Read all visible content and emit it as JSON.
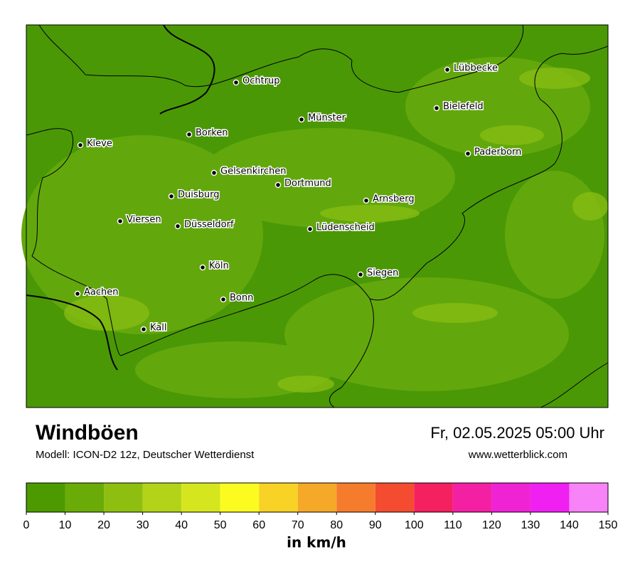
{
  "title": "Windböen",
  "model": "Modell: ICON-D2 12z, Deutscher Wetterdienst",
  "datetime": "Fr, 02.05.2025 05:00 Uhr",
  "website": "www.wetterblick.com",
  "map": {
    "cities": [
      "Lübbecke",
      "Ochtrup",
      "Bielefeld",
      "Münster",
      "Borken",
      "Kleve",
      "Paderborn",
      "Gelsenkirchen",
      "Dortmund",
      "Duisburg",
      "Arnsberg",
      "Viersen",
      "Düsseldorf",
      "Lüdenscheid",
      "Köln",
      "Siegen",
      "Aachen",
      "Bonn",
      "Kall"
    ]
  },
  "colorbar": {
    "ticks": [
      0,
      10,
      20,
      30,
      40,
      50,
      60,
      70,
      80,
      90,
      100,
      110,
      120,
      130,
      140,
      150
    ],
    "colors": [
      "#4c9a00",
      "#6aab08",
      "#8ebf10",
      "#b2d318",
      "#d6e61e",
      "#fbfb20",
      "#f8d224",
      "#f6a828",
      "#f57c2c",
      "#f44c30",
      "#f42060",
      "#f420a4",
      "#ef22d4",
      "#f020f2",
      "#f882f8"
    ],
    "unit": "in km/h"
  }
}
